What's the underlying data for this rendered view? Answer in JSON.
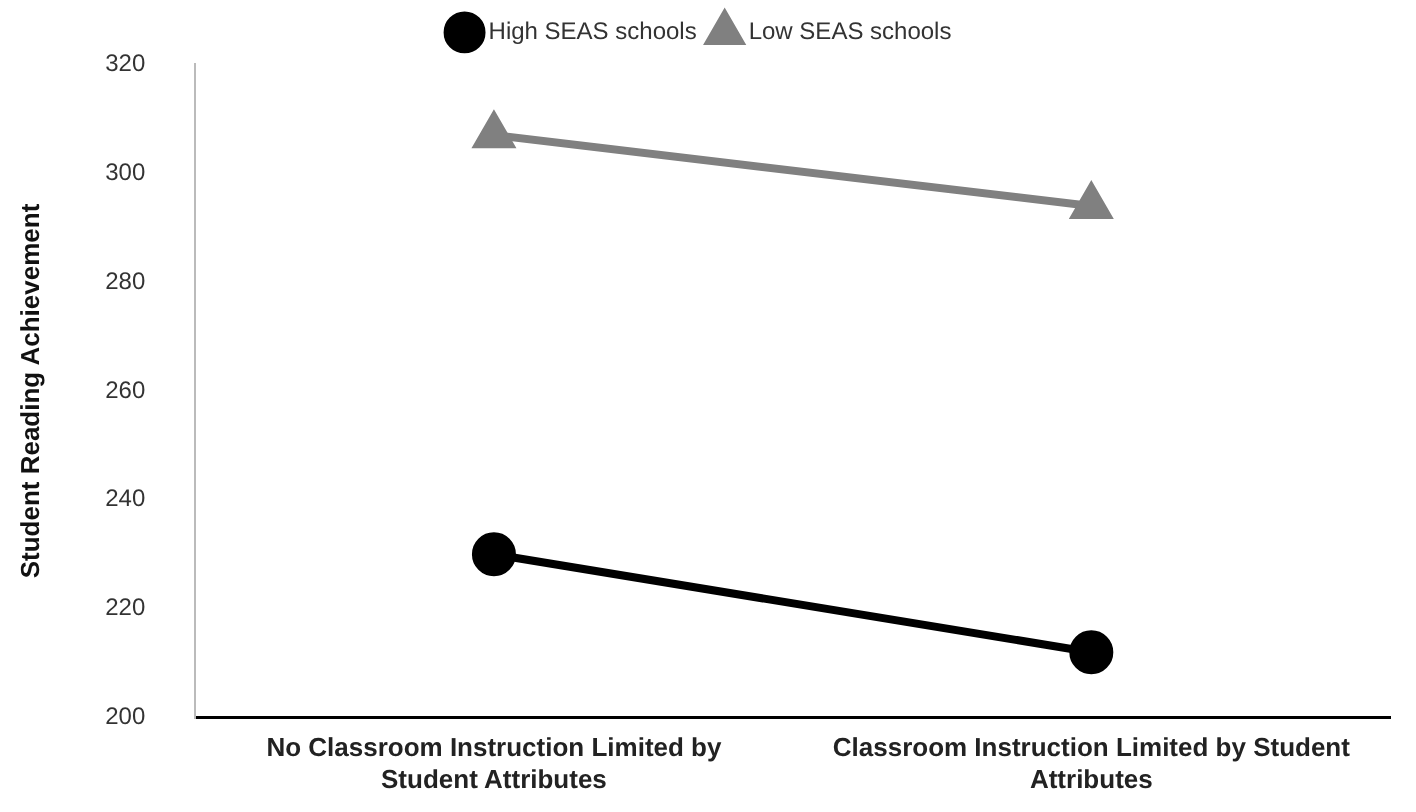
{
  "chart_data": {
    "type": "line",
    "ylabel": "Student Reading Achievement",
    "categories": [
      "No Classroom Instruction Limited by Student Attributes",
      "Classroom Instruction Limited by Student Attributes"
    ],
    "series": [
      {
        "name": "High SEAS schools",
        "color": "#000000",
        "marker": "circle",
        "values": [
          230,
          212
        ]
      },
      {
        "name": "Low SEAS schools",
        "color": "#808080",
        "marker": "triangle",
        "values": [
          307,
          294
        ]
      }
    ],
    "ylim": [
      200,
      320
    ],
    "yticks": [
      200,
      220,
      240,
      260,
      280,
      300,
      320
    ],
    "grid": false,
    "legend": "top",
    "line_style": "solid"
  }
}
